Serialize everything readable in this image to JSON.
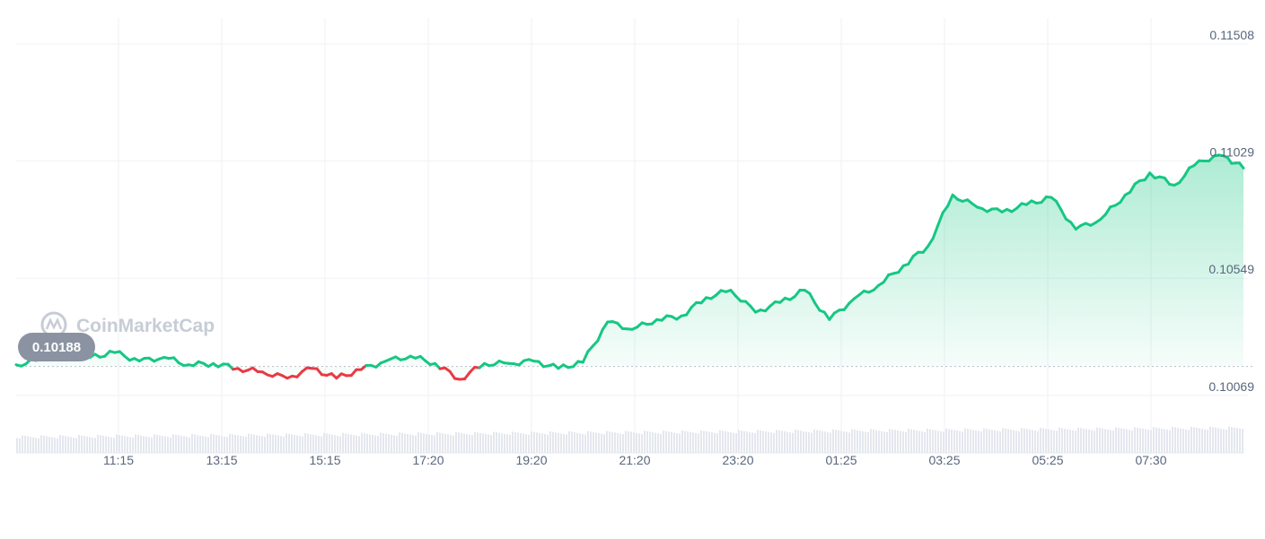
{
  "watermark": "CoinMarketCap",
  "chart_data": {
    "type": "area",
    "reference_value": 0.10188,
    "reference_label": "0.10188",
    "x_ticks": [
      "11:15",
      "13:15",
      "15:15",
      "17:20",
      "19:20",
      "21:20",
      "23:20",
      "01:25",
      "03:25",
      "05:25",
      "07:30"
    ],
    "y_ticks": [
      "0.11508",
      "0.11029",
      "0.10549",
      "0.10069"
    ],
    "ylim": [
      0.10069,
      0.11508
    ],
    "colors": {
      "up": "#16c784",
      "down": "#ea3943",
      "grid": "#eff2f5",
      "volume": "#e4e7ee"
    },
    "series": [
      {
        "x": [
          0,
          0.5,
          1,
          1.5,
          2,
          2.5,
          3,
          3.5,
          4,
          4.5,
          5,
          5.5,
          6,
          6.5,
          7,
          7.5,
          8,
          8.5,
          9,
          9.5,
          10,
          10.5,
          11,
          11.5,
          12,
          12.5,
          13,
          13.5,
          14,
          14.5,
          15,
          15.5,
          16,
          16.5,
          17,
          17.5,
          18,
          18.5,
          19,
          19.5,
          20,
          20.5,
          21,
          21.5,
          22,
          22.5,
          23,
          23.5,
          24,
          24.5,
          24.9
        ],
        "values": [
          0.10195,
          0.10215,
          0.10255,
          0.10225,
          0.10245,
          0.1021,
          0.10225,
          0.10195,
          0.102,
          0.1018,
          0.10165,
          0.1014,
          0.1018,
          0.1014,
          0.10175,
          0.1021,
          0.1023,
          0.102,
          0.10135,
          0.102,
          0.102,
          0.1021,
          0.1018,
          0.10205,
          0.1037,
          0.1034,
          0.1038,
          0.10395,
          0.1047,
          0.105,
          0.1041,
          0.1045,
          0.105,
          0.1038,
          0.10465,
          0.1052,
          0.106,
          0.1068,
          0.1089,
          0.1084,
          0.1082,
          0.1085,
          0.1088,
          0.1075,
          0.1079,
          0.1089,
          0.1098,
          0.1093,
          0.1103,
          0.1105,
          0.11
        ]
      }
    ]
  }
}
